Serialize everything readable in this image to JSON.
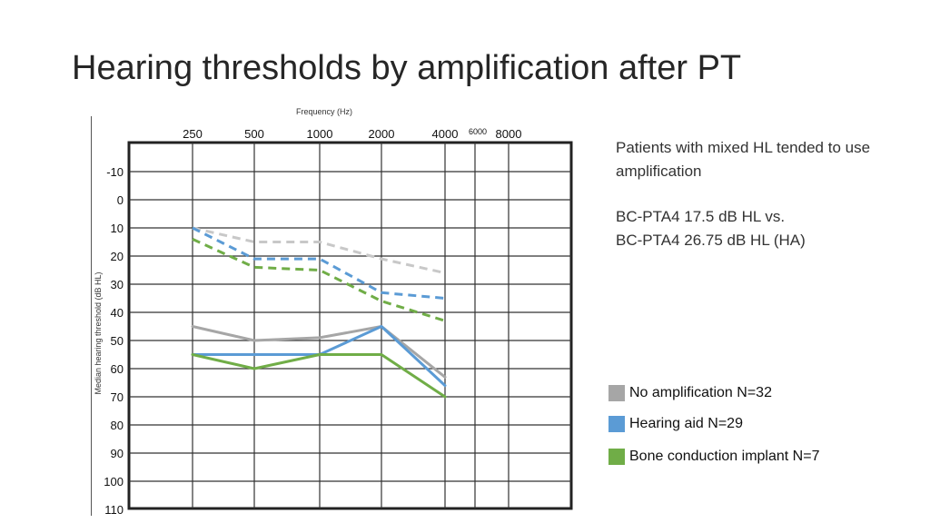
{
  "title": "Hearing thresholds by amplification after PT",
  "notes": {
    "line1": "Patients with mixed HL tended to use amplification",
    "line2": "BC-PTA4 17.5 dB HL vs.",
    "line3": "BC-PTA4 26.75 dB HL (HA)"
  },
  "legend": [
    {
      "label": "No amplification N=32",
      "color": "#a6a6a6"
    },
    {
      "label": "Hearing aid N=29",
      "color": "#5b9bd5"
    },
    {
      "label": "Bone conduction implant N=7",
      "color": "#70ad47"
    }
  ],
  "chart_data": {
    "type": "line",
    "title": "",
    "xlabel": "Frequency (Hz)",
    "ylabel": "Median hearing threshold (dB HL)",
    "x_ticks": [
      "250",
      "500",
      "1000",
      "2000",
      "4000",
      "6000",
      "8000"
    ],
    "y_ticks": [
      -10,
      0,
      10,
      20,
      30,
      40,
      50,
      60,
      70,
      80,
      90,
      100,
      110
    ],
    "ylim": [
      -10,
      110
    ],
    "y_inverted": true,
    "grid": true,
    "legend_position": "right",
    "series": [
      {
        "name": "No amplification N=32",
        "measure": "BC",
        "style": "dashed",
        "color": "#c8c8c8",
        "x": [
          "250",
          "500",
          "1000",
          "2000",
          "4000"
        ],
        "y": [
          10,
          15,
          15,
          21,
          26
        ]
      },
      {
        "name": "Hearing aid N=29",
        "measure": "BC",
        "style": "dashed",
        "color": "#5b9bd5",
        "x": [
          "250",
          "500",
          "1000",
          "2000",
          "4000"
        ],
        "y": [
          10,
          21,
          21,
          33,
          35
        ]
      },
      {
        "name": "Bone conduction implant N=7",
        "measure": "BC",
        "style": "dashed",
        "color": "#70ad47",
        "x": [
          "250",
          "500",
          "1000",
          "2000",
          "4000"
        ],
        "y": [
          14,
          24,
          25,
          36,
          43
        ]
      },
      {
        "name": "No amplification N=32",
        "measure": "AC",
        "style": "solid",
        "color": "#a6a6a6",
        "x": [
          "250",
          "500",
          "1000",
          "2000",
          "4000"
        ],
        "y": [
          45,
          50,
          49,
          45,
          63
        ]
      },
      {
        "name": "Hearing aid N=29",
        "measure": "AC",
        "style": "solid",
        "color": "#5b9bd5",
        "x": [
          "250",
          "500",
          "1000",
          "2000",
          "4000"
        ],
        "y": [
          55,
          55,
          55,
          45,
          66
        ]
      },
      {
        "name": "Bone conduction implant N=7",
        "measure": "AC",
        "style": "solid",
        "color": "#70ad47",
        "x": [
          "250",
          "500",
          "1000",
          "2000",
          "4000"
        ],
        "y": [
          55,
          60,
          55,
          55,
          70
        ]
      }
    ]
  }
}
